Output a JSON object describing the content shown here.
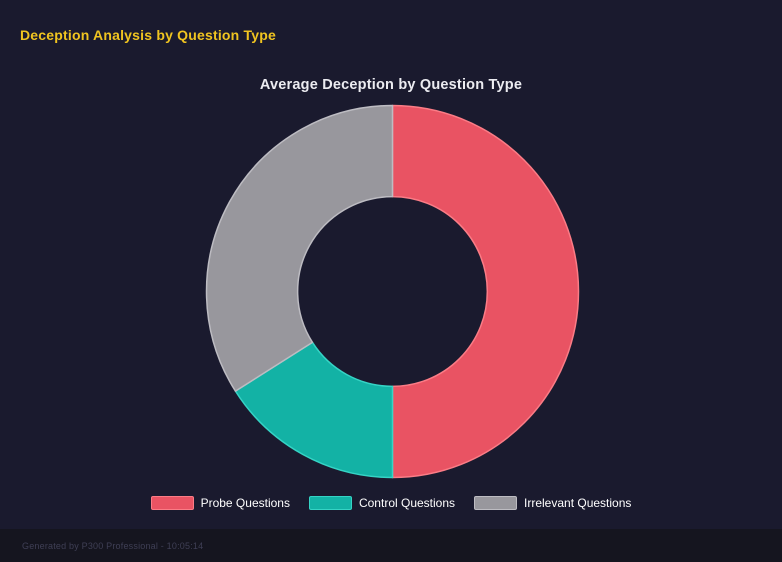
{
  "page": {
    "title": "Deception Analysis by Question Type",
    "title_color": "#f0c420",
    "background": "#1a1a2e"
  },
  "chart_data": {
    "type": "pie",
    "variant": "donut",
    "title": "Average Deception by Question Type",
    "labels": [
      "Probe Questions",
      "Control Questions",
      "Irrelevant Questions"
    ],
    "values": [
      50,
      16,
      34
    ],
    "values_unit": "percent_of_circle_estimated",
    "colors": [
      "#e95363",
      "#13b2a5",
      "#98979d"
    ],
    "border_colors": [
      "#fb7c86",
      "#35d4c5",
      "#bdbcc2"
    ],
    "cutout_ratio": 0.51,
    "start_angle_deg": 0,
    "legend_position": "bottom",
    "grid": false
  },
  "footer": {
    "text": "Generated by P300 Professional - 10:05:14"
  }
}
